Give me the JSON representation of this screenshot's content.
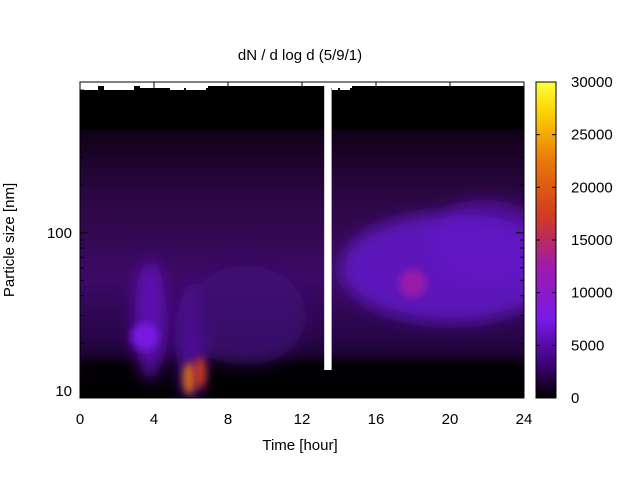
{
  "chart_data": {
    "type": "heatmap",
    "title": "dN / d log d (5/9/1)",
    "xlabel": "Time [hour]",
    "ylabel": "Particle size [nm]",
    "xlim": [
      0,
      24
    ],
    "x_ticks": [
      0,
      4,
      8,
      12,
      16,
      20,
      24
    ],
    "y_scale": "log",
    "ylim": [
      9,
      900
    ],
    "y_ticks": [
      10,
      100
    ],
    "colorbar": {
      "range": [
        0,
        30000
      ],
      "ticks": [
        0,
        5000,
        10000,
        15000,
        20000,
        25000,
        30000
      ],
      "colormap": "black-purple-red-orange-yellow",
      "stops": [
        "#000000",
        "#3a0070",
        "#7a1ae8",
        "#a01aa8",
        "#d23c1e",
        "#e8780a",
        "#fbd000",
        "#ffff40"
      ]
    },
    "data_gap_hours": [
      13.2,
      13.6
    ],
    "hot_spots": [
      {
        "time": 18.0,
        "size": 48,
        "value": 11000
      },
      {
        "time": 5.9,
        "size": 12,
        "value": 22000
      },
      {
        "time": 6.5,
        "size": 13,
        "value": 18000
      },
      {
        "time": 3.5,
        "size": 22,
        "value": 7000
      }
    ],
    "grid": false,
    "legend": "colorbar-right"
  }
}
